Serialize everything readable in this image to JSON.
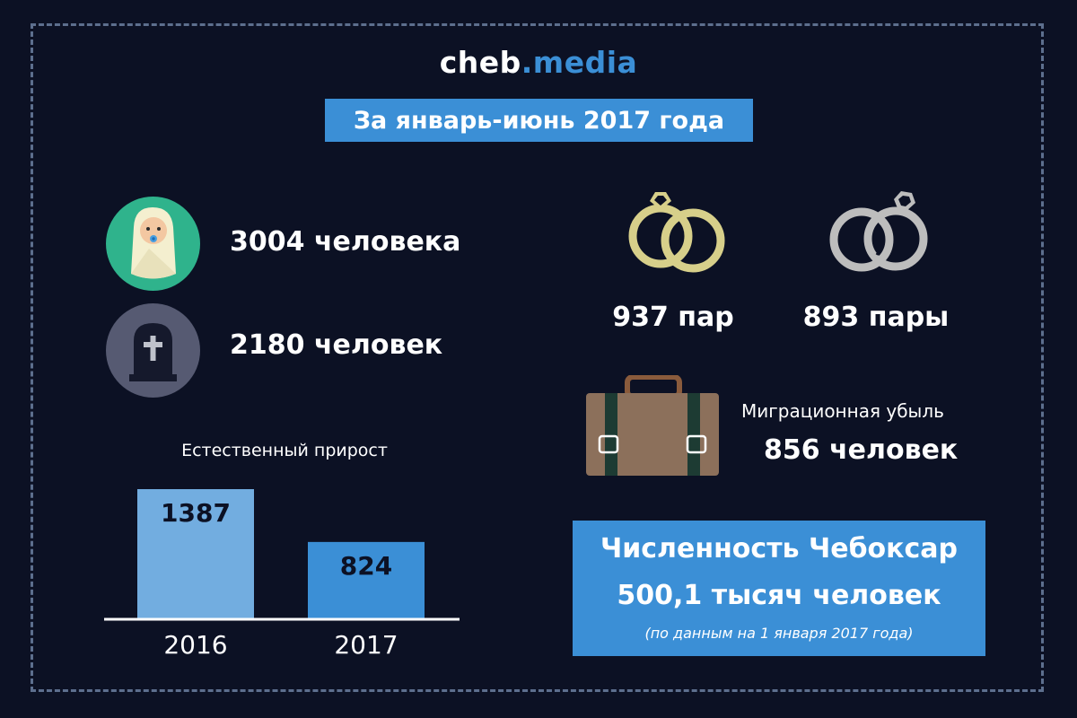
{
  "brand": {
    "part1": "cheb",
    "part2": ".media"
  },
  "period_title": "За январь-июнь 2017 года",
  "births": {
    "label": "3004 человека",
    "icon": "baby-icon",
    "color": "#2fb38c"
  },
  "deaths": {
    "label": "2180 человек",
    "icon": "tombstone-icon",
    "color": "#565a72"
  },
  "marriages": {
    "label": "937 пар",
    "icon": "wedding-rings-icon",
    "color": "#d7cf8a"
  },
  "divorces": {
    "label": "893 пары",
    "icon": "broken-rings-icon",
    "color": "#bdbdbd"
  },
  "migration": {
    "caption": "Миграционная убыль",
    "label": "856 человек",
    "icon": "suitcase-icon"
  },
  "population": {
    "line1": "Численность Чебоксар",
    "line2": "500,1 тысяч человек",
    "note": "(по данным на 1 января 2017 года)"
  },
  "chart_data": {
    "type": "bar",
    "title": "Естественный прирост",
    "categories": [
      "2016",
      "2017"
    ],
    "values": [
      1387,
      824
    ],
    "value_labels": [
      "1387",
      "824"
    ],
    "colors": [
      "#72ade0",
      "#3b8fd6"
    ],
    "ylim": [
      0,
      1387
    ],
    "grid": false,
    "legend": "none"
  }
}
